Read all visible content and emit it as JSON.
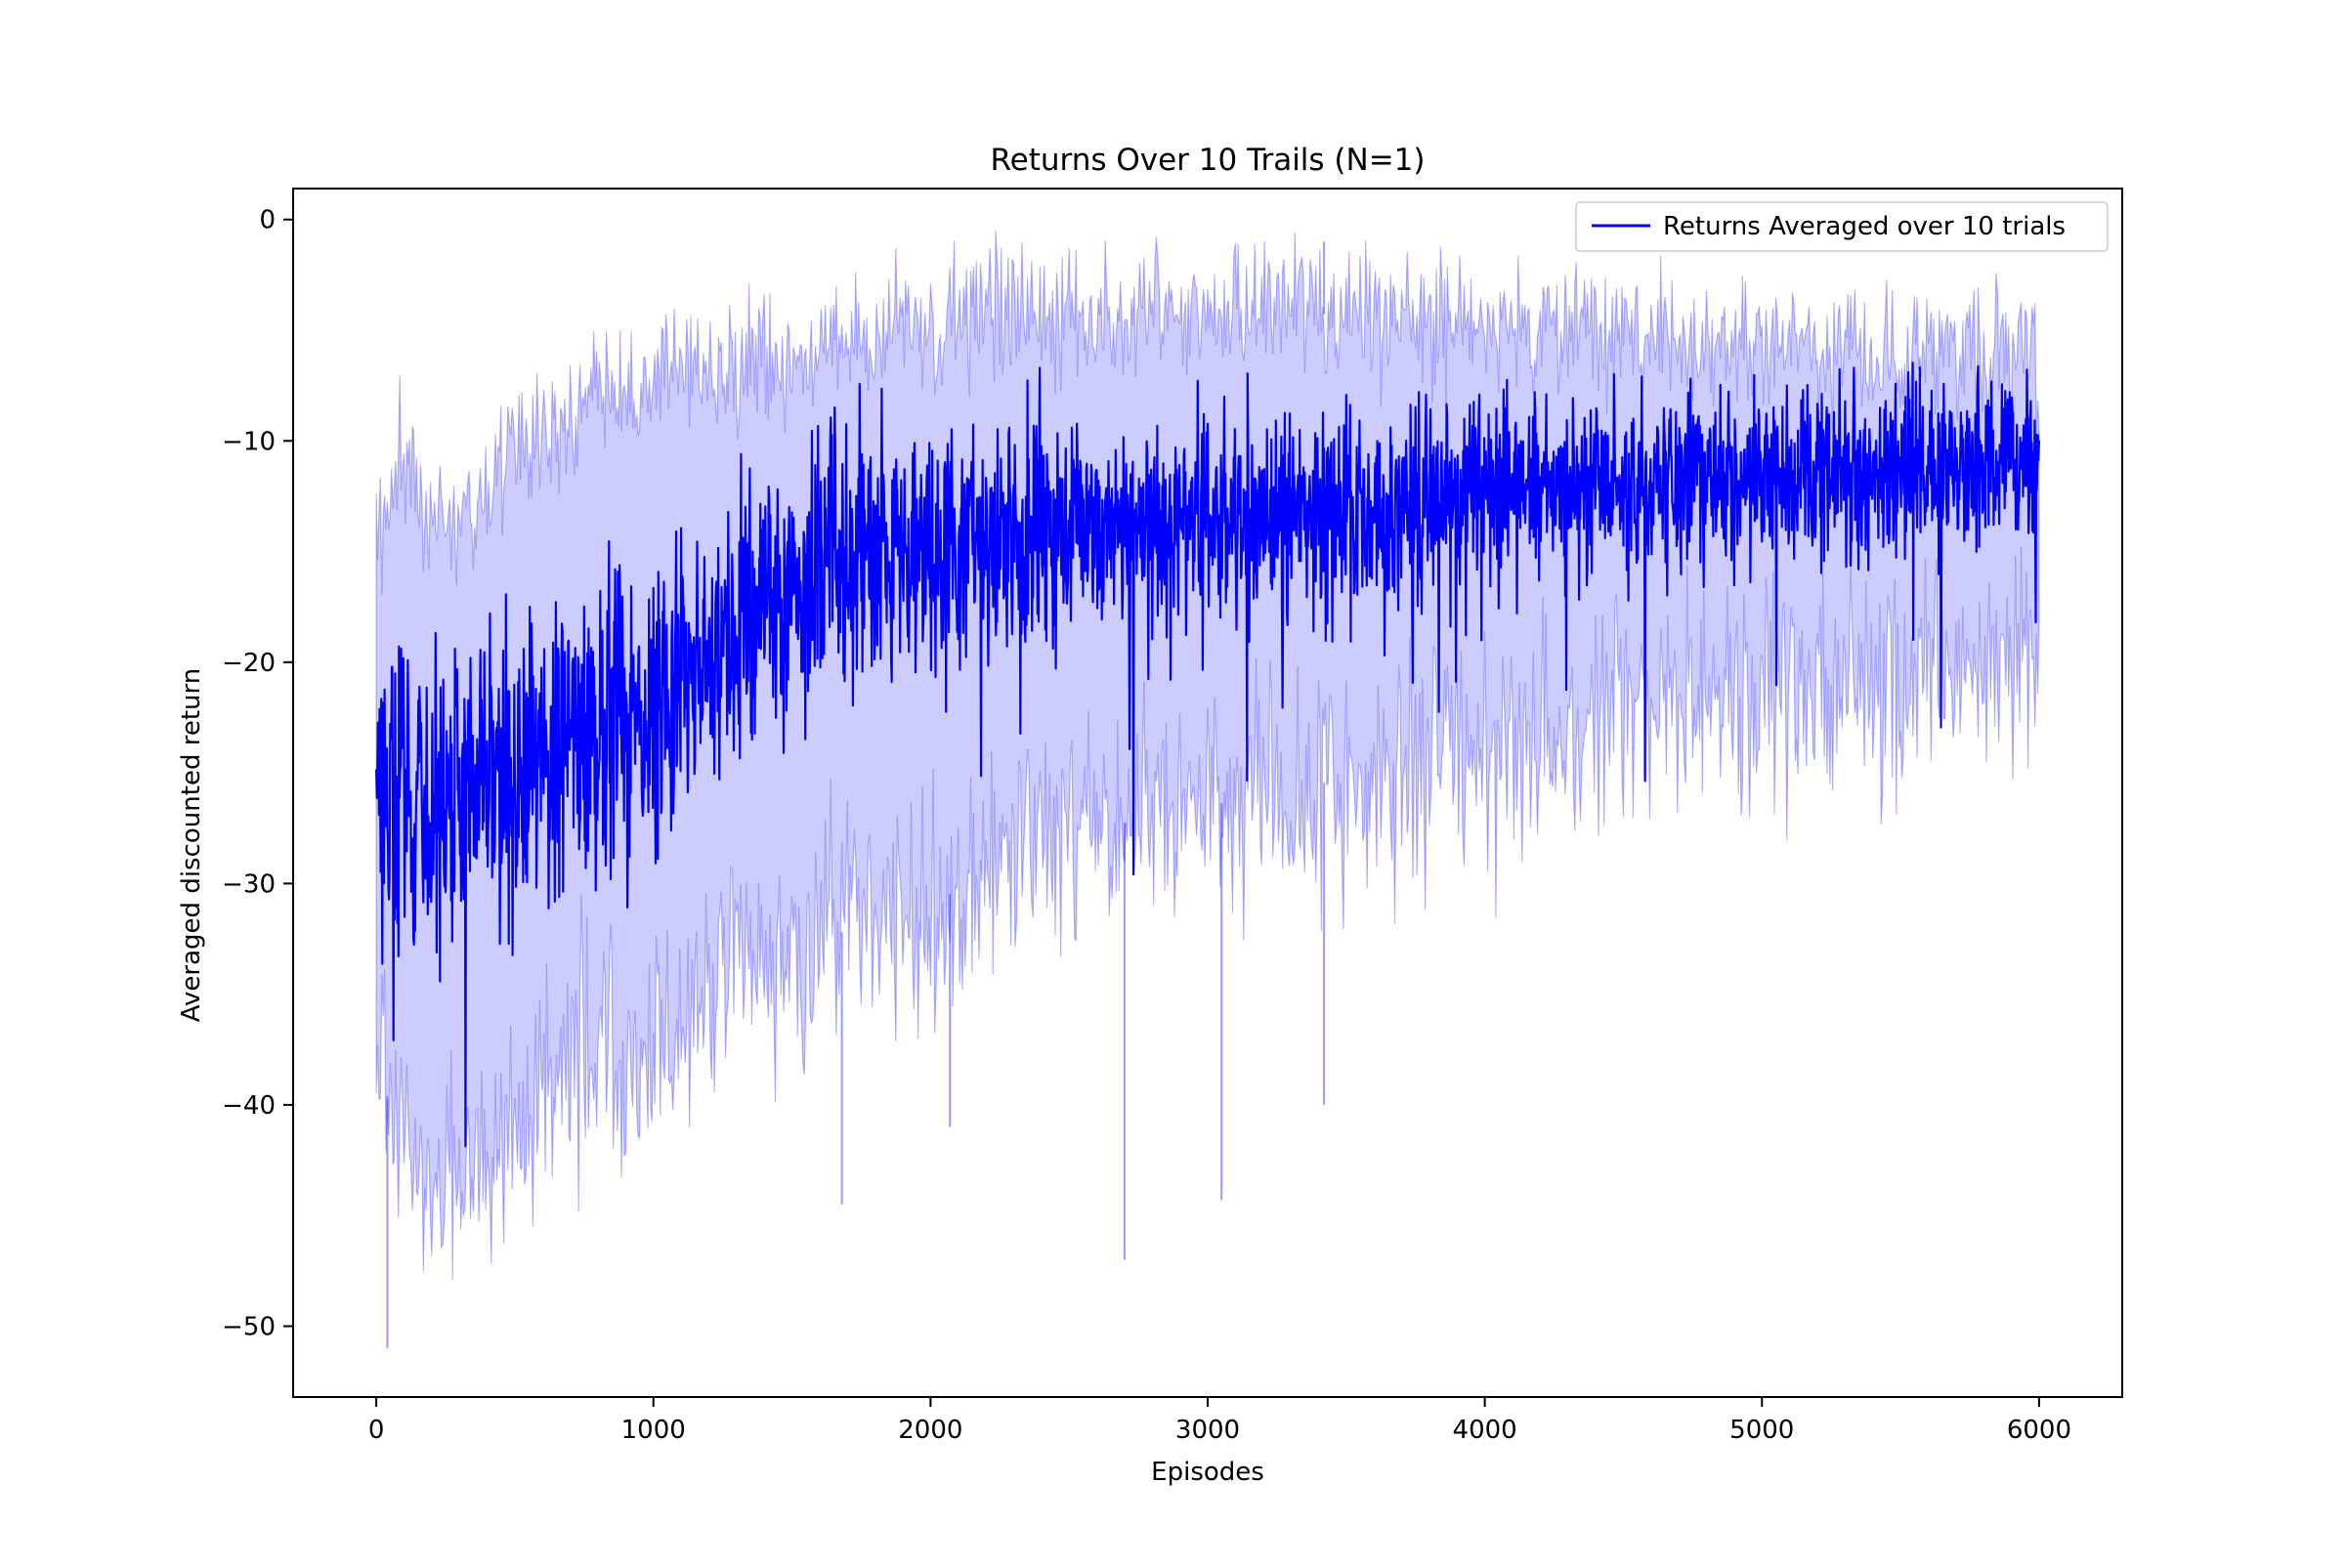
{
  "chart_data": {
    "type": "line",
    "title": "Returns Over 10 Trails (N=1)",
    "xlabel": "Episodes",
    "ylabel": "Averaged discounted return",
    "xlim": [
      -300,
      6300
    ],
    "ylim": [
      -53.2,
      1.4
    ],
    "xticks": [
      0,
      1000,
      2000,
      3000,
      4000,
      5000,
      6000
    ],
    "xtick_labels": [
      "0",
      "1000",
      "2000",
      "3000",
      "4000",
      "5000",
      "6000"
    ],
    "yticks": [
      0,
      -10,
      -20,
      -30,
      -40,
      -50
    ],
    "ytick_labels": [
      "0",
      "−10",
      "−20",
      "−30",
      "−40",
      "−50"
    ],
    "grid": false,
    "legend_position": "top-right",
    "colors": {
      "mean": "#0000ff",
      "band": "#0000ff"
    },
    "series": [
      {
        "name": "Returns Averaged over 10 trials",
        "style": "mean-line",
        "x": [
          0,
          100,
          200,
          300,
          400,
          500,
          600,
          700,
          800,
          900,
          1000,
          1100,
          1200,
          1300,
          1400,
          1500,
          1600,
          1700,
          1800,
          1900,
          2000,
          2200,
          2400,
          2600,
          2800,
          3000,
          3200,
          3400,
          3600,
          3800,
          4000,
          4200,
          4400,
          4600,
          4800,
          5000,
          5200,
          5400,
          5600,
          5800,
          6000
        ],
        "y": [
          -25,
          -26,
          -26.5,
          -26,
          -25.5,
          -25,
          -24.2,
          -23.5,
          -23,
          -22.5,
          -22,
          -21,
          -19.5,
          -18,
          -17,
          -16.5,
          -16,
          -15.5,
          -15,
          -14.8,
          -14.5,
          -14.3,
          -14,
          -13.8,
          -13.7,
          -13.5,
          -13.3,
          -13.2,
          -13,
          -12.8,
          -12.5,
          -12.2,
          -12,
          -11.8,
          -11.7,
          -11.5,
          -11.4,
          -11.3,
          -11.2,
          -11.1,
          -11
        ]
      },
      {
        "name": "",
        "style": "band-upper",
        "x": [
          0,
          100,
          200,
          300,
          400,
          500,
          700,
          1000,
          1300,
          1500,
          1800,
          2000,
          2400,
          2800,
          3200,
          3600,
          4000,
          4400,
          4800,
          5200,
          5600,
          6000
        ],
        "y": [
          -14,
          -11,
          -13,
          -13,
          -12,
          -10,
          -9,
          -7,
          -6.5,
          -6,
          -4.5,
          -5,
          -4,
          -4.5,
          -4,
          -4.5,
          -5,
          -5,
          -5.5,
          -6,
          -6,
          -6.5
        ]
      },
      {
        "name": "",
        "style": "band-lower",
        "x": [
          0,
          100,
          200,
          300,
          400,
          500,
          700,
          1000,
          1300,
          1500,
          1800,
          2000,
          2400,
          2800,
          3200,
          3600,
          4000,
          4400,
          4800,
          5200,
          5600,
          6000
        ],
        "y": [
          -38,
          -42,
          -44,
          -44,
          -43,
          -42,
          -38,
          -38,
          -33,
          -34,
          -31,
          -31,
          -28,
          -27,
          -26,
          -25,
          -24,
          -23,
          -22,
          -21,
          -21,
          -19
        ]
      }
    ],
    "annotations": [
      {
        "x": 40,
        "y": -51,
        "label": ""
      },
      {
        "x": 1680,
        "y": -44.5,
        "label": ""
      },
      {
        "x": 2700,
        "y": -47,
        "label": ""
      },
      {
        "x": 3050,
        "y": -44.3,
        "label": ""
      },
      {
        "x": 3420,
        "y": -40,
        "label": ""
      },
      {
        "x": 2070,
        "y": -41,
        "label": ""
      },
      {
        "x": 3420,
        "y": -1,
        "label": ""
      }
    ]
  }
}
